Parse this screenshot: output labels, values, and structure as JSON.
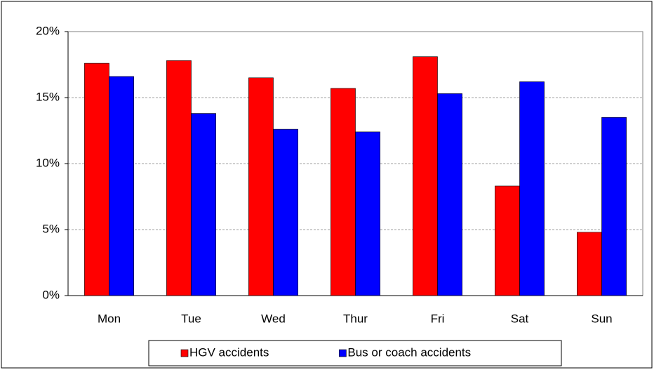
{
  "chart_data": {
    "type": "bar",
    "categories": [
      "Mon",
      "Tue",
      "Wed",
      "Thur",
      "Fri",
      "Sat",
      "Sun"
    ],
    "series": [
      {
        "name": "HGV accidents",
        "color": "#ff0000",
        "values": [
          17.6,
          17.8,
          16.5,
          15.7,
          18.1,
          8.3,
          4.8
        ]
      },
      {
        "name": "Bus or coach accidents",
        "color": "#0000ff",
        "values": [
          16.6,
          13.8,
          12.6,
          12.4,
          15.3,
          16.2,
          13.5
        ]
      }
    ],
    "ylim": [
      0,
      20
    ],
    "yticks": [
      {
        "value": 0,
        "label": "0%"
      },
      {
        "value": 5,
        "label": "5%"
      },
      {
        "value": 10,
        "label": "10%"
      },
      {
        "value": 15,
        "label": "15%"
      },
      {
        "value": 20,
        "label": "20%"
      }
    ],
    "grid": true,
    "legend": "bottom"
  }
}
